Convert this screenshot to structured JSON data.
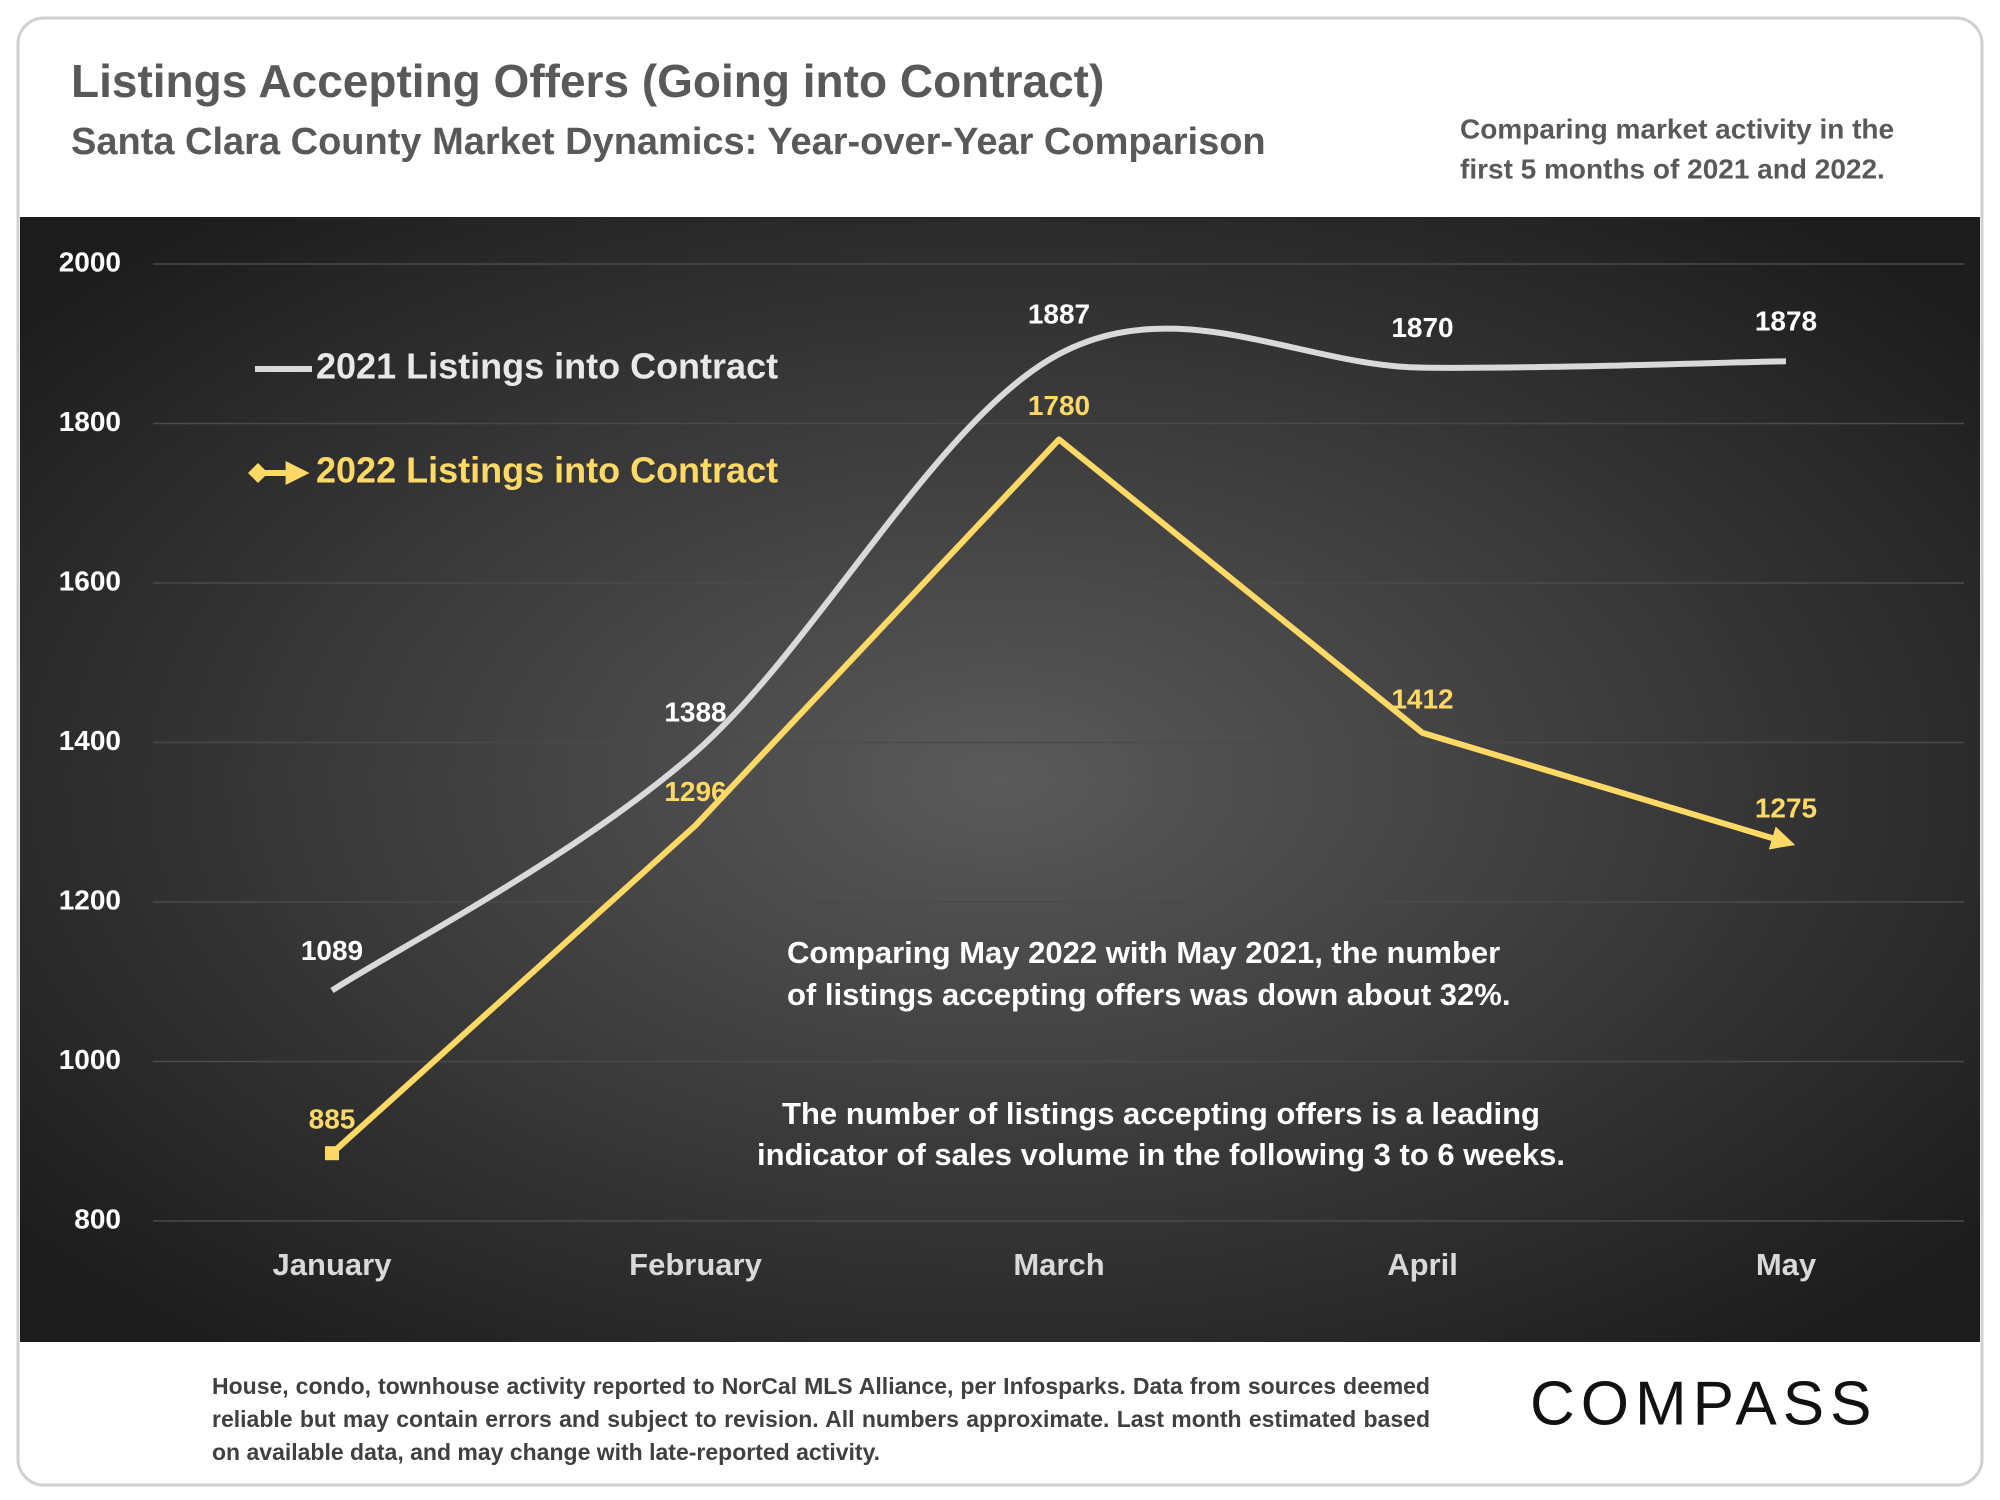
{
  "chart_data": {
    "type": "line",
    "title": "Listings Accepting Offers (Going into Contract)",
    "subtitle": "Santa Clara County Market Dynamics: Year-over-Year Comparison",
    "note": [
      "Comparing market activity in the",
      "first 5 months of 2021 and 2022."
    ],
    "categories": [
      "January",
      "February",
      "March",
      "April",
      "May"
    ],
    "series": [
      {
        "name": "2021 Listings into Contract",
        "color": "#d9d9d9",
        "smooth": true,
        "values": [
          1089,
          1388,
          1887,
          1870,
          1878
        ]
      },
      {
        "name": "2022 Listings into Contract",
        "color": "#ffd966",
        "smooth": false,
        "values": [
          885,
          1296,
          1780,
          1412,
          1275
        ]
      }
    ],
    "ylim": [
      800,
      2000
    ],
    "yticks": [
      800,
      1000,
      1200,
      1400,
      1600,
      1800,
      2000
    ],
    "grid": true,
    "legend": "top-left",
    "annotations": [
      [
        "Comparing May 2022 with May 2021, the number",
        "of listings accepting offers was down about 32%."
      ],
      [
        "The number of listings accepting offers is a leading",
        "indicator of sales volume in the following 3 to 6 weeks."
      ]
    ],
    "footer": "House, condo, townhouse activity reported to NorCal MLS Alliance, per Infosparks. Data from sources deemed reliable but may contain errors and subject to revision. All numbers approximate. Last month estimated based on available data, and may change with late-reported activity.",
    "logo": "COMPASS"
  }
}
